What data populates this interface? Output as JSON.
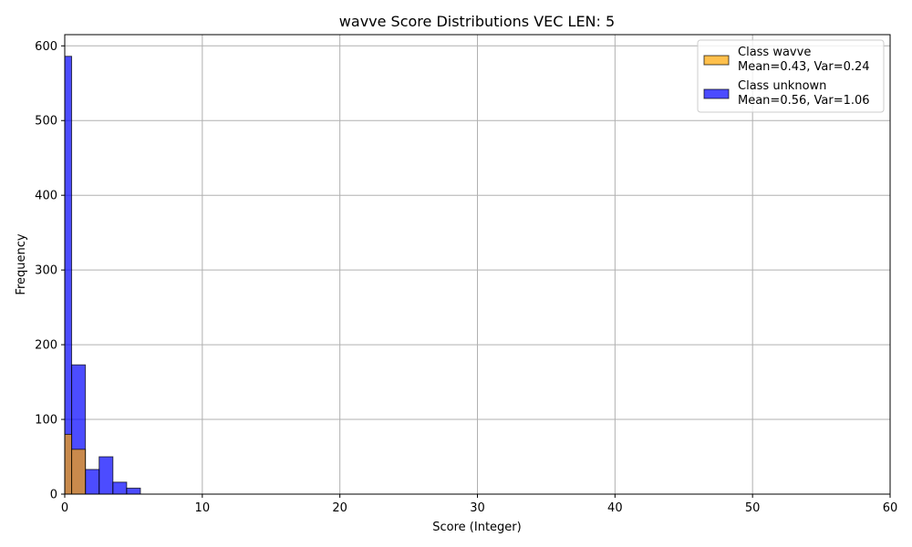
{
  "chart_data": {
    "type": "bar",
    "subtype": "histogram",
    "title": "wavve Score Distributions VEC LEN: 5",
    "xlabel": "Score (Integer)",
    "ylabel": "Frequency",
    "xlim": [
      0,
      60
    ],
    "ylim": [
      0,
      615
    ],
    "xticks": [
      0,
      10,
      20,
      30,
      40,
      50,
      60
    ],
    "yticks": [
      0,
      100,
      200,
      300,
      400,
      500,
      600
    ],
    "grid": true,
    "legend_position": "top-right",
    "series": [
      {
        "name": "Class wavve",
        "mean_var_label": "Mean=0.43, Var=0.24",
        "color": "#FFA500",
        "bins": [
          {
            "x0": 0.0,
            "x1": 0.5,
            "count": 80
          },
          {
            "x0": 0.5,
            "x1": 1.5,
            "count": 60
          }
        ]
      },
      {
        "name": "Class unknown",
        "mean_var_label": "Mean=0.56, Var=1.06",
        "color": "#0000FF",
        "bins": [
          {
            "x0": 0.0,
            "x1": 0.5,
            "count": 586
          },
          {
            "x0": 0.5,
            "x1": 1.5,
            "count": 173
          },
          {
            "x0": 1.5,
            "x1": 2.5,
            "count": 33
          },
          {
            "x0": 2.5,
            "x1": 3.5,
            "count": 50
          },
          {
            "x0": 3.5,
            "x1": 4.5,
            "count": 16
          },
          {
            "x0": 4.5,
            "x1": 5.5,
            "count": 8
          }
        ]
      }
    ]
  }
}
